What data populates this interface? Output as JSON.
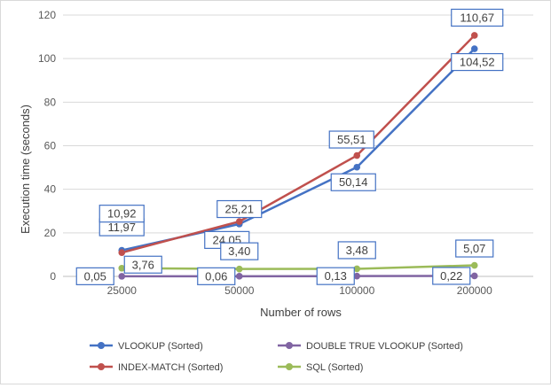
{
  "chart_data": {
    "type": "line",
    "title": "",
    "xlabel": "Number of rows",
    "ylabel": "Execution time (seconds)",
    "ylim": [
      0,
      120
    ],
    "yticks": [
      0,
      20,
      40,
      60,
      80,
      100,
      120
    ],
    "categories": [
      "25000",
      "50000",
      "100000",
      "200000"
    ],
    "grid": "horizontal",
    "legend_position": "bottom",
    "series": [
      {
        "name": "VLOOKUP (Sorted)",
        "color": "#4472c4",
        "values": [
          11.97,
          24.05,
          50.14,
          104.52
        ],
        "labels": [
          "11,97",
          "24,05",
          "50,14",
          "104,52"
        ]
      },
      {
        "name": "INDEX-MATCH (Sorted)",
        "color": "#c0504d",
        "values": [
          10.92,
          25.21,
          55.51,
          110.67
        ],
        "labels": [
          "10,92",
          "25,21",
          "55,51",
          "110,67"
        ]
      },
      {
        "name": "DOUBLE TRUE VLOOKUP (Sorted)",
        "color": "#8064a2",
        "values": [
          0.05,
          0.06,
          0.13,
          0.22
        ],
        "labels": [
          "0,05",
          "0,06",
          "0,13",
          "0,22"
        ]
      },
      {
        "name": "SQL (Sorted)",
        "color": "#9bbb59",
        "values": [
          3.76,
          3.4,
          3.48,
          5.07
        ],
        "labels": [
          "3,76",
          "3,40",
          "3,48",
          "5,07"
        ]
      }
    ]
  }
}
